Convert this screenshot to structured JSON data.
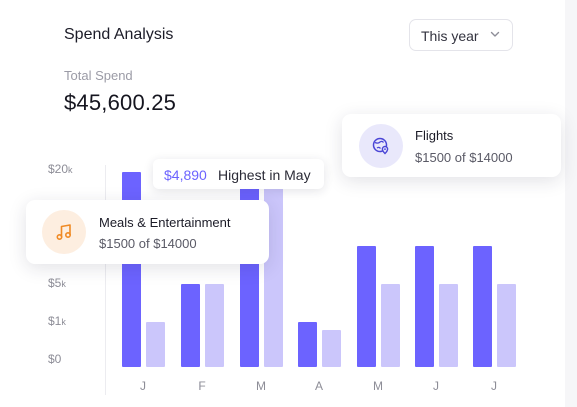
{
  "header": {
    "title": "Spend Analysis",
    "period_select": "This year"
  },
  "summary": {
    "label": "Total Spend",
    "value": "$45,600.25"
  },
  "highlight": {
    "value": "$4,890",
    "text": "Highest in May"
  },
  "tooltips": {
    "flights": {
      "name": "Flights",
      "detail": "$1500 of $14000",
      "icon": "globe-pin-icon"
    },
    "meals": {
      "name": "Meals & Entertainment",
      "detail": "$1500 of $14000",
      "icon": "music-note-icon"
    }
  },
  "colors": {
    "primary": "#6c63ff",
    "secondary": "#cbc6fb",
    "meals_accent": "#f08a24"
  },
  "chart_data": {
    "type": "bar",
    "y_ticks": [
      {
        "num": "$0",
        "unit": ""
      },
      {
        "num": "$1",
        "unit": "k"
      },
      {
        "num": "$5",
        "unit": "k"
      },
      {
        "num": "$20",
        "unit": "k"
      }
    ],
    "categories": [
      "J",
      "F",
      "M",
      "A",
      "M",
      "J",
      "J"
    ],
    "series": [
      {
        "values": [
          20,
          5,
          20,
          1,
          10,
          10,
          10
        ]
      },
      {
        "values": [
          1,
          5,
          30,
          0.8,
          5,
          5,
          5
        ]
      }
    ]
  }
}
